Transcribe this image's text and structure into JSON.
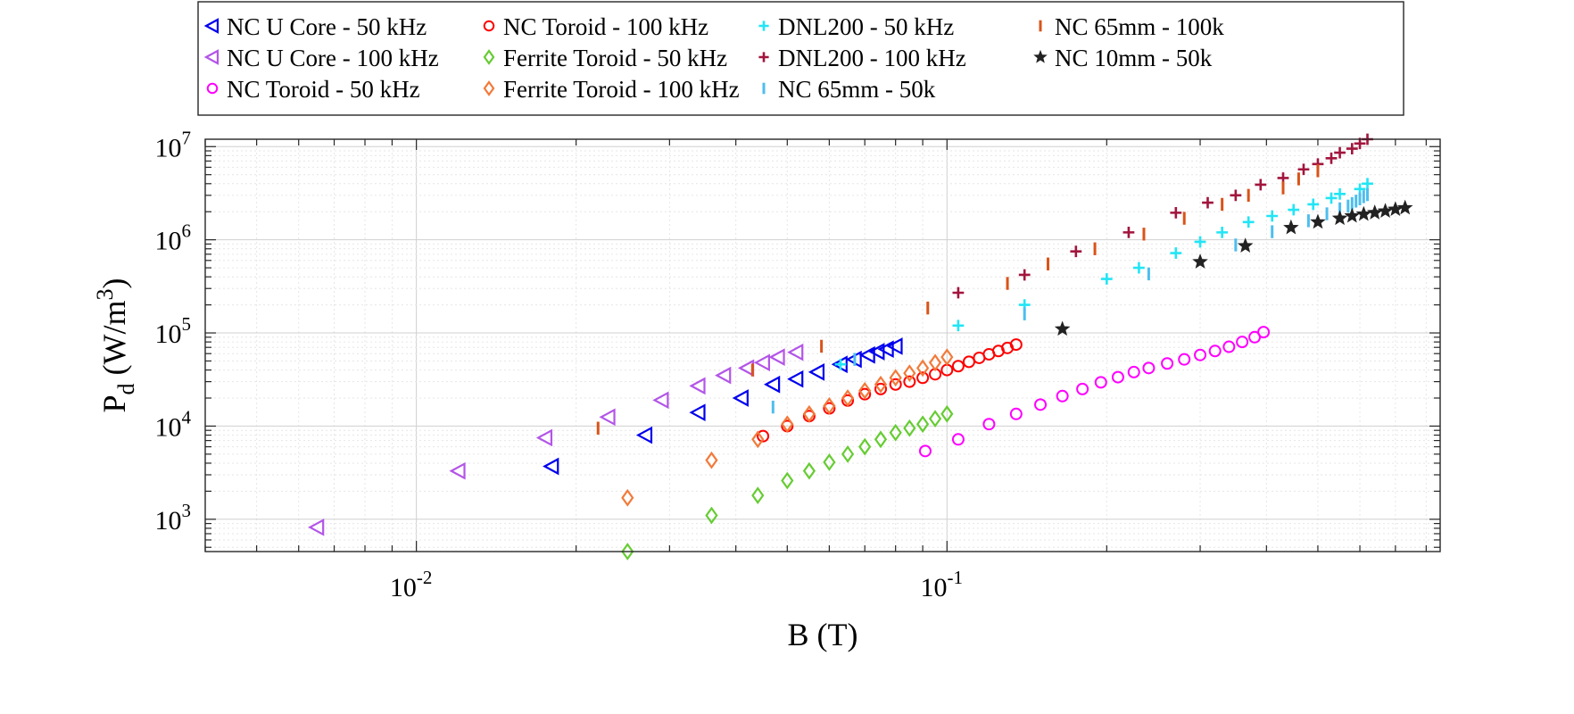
{
  "chart_data": {
    "type": "scatter",
    "title": "",
    "xlabel": "B (T)",
    "ylabel_main": "P",
    "ylabel_sub": "d",
    "ylabel_units": " (W/m",
    "ylabel_sup": "3",
    "ylabel_close": ")",
    "x_scale": "log",
    "y_scale": "log",
    "xlim": [
      0.004,
      0.85
    ],
    "ylim": [
      450,
      12000000
    ],
    "x_ticks": [
      {
        "value": 0.01,
        "base": "10",
        "exp": "-2"
      },
      {
        "value": 0.1,
        "base": "10",
        "exp": "-1"
      }
    ],
    "y_ticks": [
      {
        "value": 1000,
        "base": "10",
        "exp": "3"
      },
      {
        "value": 10000,
        "base": "10",
        "exp": "4"
      },
      {
        "value": 100000,
        "base": "10",
        "exp": "5"
      },
      {
        "value": 1000000,
        "base": "10",
        "exp": "6"
      },
      {
        "value": 10000000,
        "base": "10",
        "exp": "7"
      }
    ],
    "grid": true,
    "legend_position": "top",
    "series": [
      {
        "name": "NC U Core - 50 kHz",
        "marker": "tri-left",
        "color": "#0000ee",
        "x": [
          0.018,
          0.027,
          0.034,
          0.041,
          0.047,
          0.052,
          0.057,
          0.063,
          0.067,
          0.071,
          0.074,
          0.077,
          0.08
        ],
        "y": [
          3700,
          8000,
          14000,
          20000,
          28000,
          32000,
          38000,
          46000,
          52000,
          58000,
          63000,
          67000,
          72000
        ]
      },
      {
        "name": "NC U Core - 100 kHz",
        "marker": "tri-left",
        "color": "#b355e8",
        "x": [
          0.0065,
          0.012,
          0.0175,
          0.023,
          0.029,
          0.034,
          0.038,
          0.042,
          0.045,
          0.048,
          0.052
        ],
        "y": [
          820,
          3300,
          7500,
          12500,
          19000,
          27000,
          35000,
          42000,
          48000,
          55000,
          62000
        ]
      },
      {
        "name": "NC Toroid - 50 kHz",
        "marker": "circle",
        "color": "#ff00ff",
        "x": [
          0.091,
          0.105,
          0.12,
          0.135,
          0.15,
          0.165,
          0.18,
          0.195,
          0.21,
          0.225,
          0.24,
          0.26,
          0.28,
          0.3,
          0.32,
          0.34,
          0.36,
          0.38,
          0.395
        ],
        "y": [
          5400,
          7200,
          10500,
          13500,
          17000,
          21000,
          25000,
          29500,
          33500,
          38000,
          42000,
          47000,
          52000,
          58000,
          64000,
          71000,
          80000,
          90000,
          102000
        ]
      },
      {
        "name": "NC Toroid - 100 kHz",
        "marker": "circle",
        "color": "#ff0000",
        "x": [
          0.045,
          0.05,
          0.055,
          0.06,
          0.065,
          0.07,
          0.075,
          0.08,
          0.085,
          0.09,
          0.095,
          0.1,
          0.105,
          0.11,
          0.115,
          0.12,
          0.125,
          0.13,
          0.135
        ],
        "y": [
          7800,
          10000,
          12800,
          15500,
          18800,
          22000,
          25000,
          28000,
          30000,
          33000,
          36000,
          40000,
          44000,
          49000,
          54000,
          59000,
          64000,
          69000,
          75000
        ]
      },
      {
        "name": "Ferrite Toroid - 50 kHz",
        "marker": "diamond",
        "color": "#66cc33",
        "x": [
          0.025,
          0.036,
          0.044,
          0.05,
          0.055,
          0.06,
          0.065,
          0.07,
          0.075,
          0.08,
          0.085,
          0.09,
          0.095,
          0.1
        ],
        "y": [
          450,
          1100,
          1800,
          2600,
          3300,
          4100,
          5000,
          6000,
          7200,
          8500,
          9500,
          10500,
          12000,
          13500
        ]
      },
      {
        "name": "Ferrite Toroid - 100 kHz",
        "marker": "diamond",
        "color": "#f27a3a",
        "x": [
          0.025,
          0.036,
          0.044,
          0.05,
          0.055,
          0.06,
          0.065,
          0.07,
          0.075,
          0.08,
          0.085,
          0.09,
          0.095,
          0.1
        ],
        "y": [
          1700,
          4300,
          7200,
          10500,
          13500,
          16500,
          20000,
          24000,
          28000,
          33000,
          37000,
          42000,
          48000,
          55000
        ]
      },
      {
        "name": "DNL200 - 50 kHz",
        "marker": "plus",
        "color": "#22e5f5",
        "x": [
          0.063,
          0.105,
          0.14,
          0.2,
          0.23,
          0.27,
          0.3,
          0.33,
          0.37,
          0.41,
          0.45,
          0.49,
          0.53,
          0.55,
          0.6,
          0.62
        ],
        "y": [
          46000,
          120000,
          200000,
          380000,
          500000,
          720000,
          950000,
          1200000,
          1550000,
          1800000,
          2100000,
          2400000,
          2800000,
          3100000,
          3500000,
          4000000
        ]
      },
      {
        "name": "DNL200 - 100 kHz",
        "marker": "plus",
        "color": "#a2153d",
        "x": [
          0.105,
          0.14,
          0.175,
          0.22,
          0.27,
          0.31,
          0.35,
          0.39,
          0.43,
          0.47,
          0.5,
          0.53,
          0.55,
          0.58,
          0.6,
          0.62
        ],
        "y": [
          270000,
          420000,
          750000,
          1200000,
          1950000,
          2500000,
          3000000,
          3900000,
          4600000,
          5700000,
          6500000,
          7500000,
          8600000,
          9500000,
          10800000,
          12000000
        ]
      },
      {
        "name": "NC 65mm - 50k",
        "marker": "vbar",
        "color": "#4dbeee",
        "x": [
          0.047,
          0.067,
          0.14,
          0.24,
          0.35,
          0.41,
          0.48,
          0.52,
          0.55,
          0.57,
          0.58,
          0.59,
          0.6,
          0.61,
          0.62
        ],
        "y": [
          16000,
          52000,
          160000,
          430000,
          880000,
          1220000,
          1600000,
          1900000,
          2150000,
          2300000,
          2450000,
          2600000,
          2750000,
          2900000,
          3050000
        ]
      },
      {
        "name": "NC 65mm - 100k",
        "marker": "vbar",
        "color": "#d95319",
        "x": [
          0.022,
          0.043,
          0.058,
          0.092,
          0.13,
          0.155,
          0.19,
          0.235,
          0.28,
          0.33,
          0.37,
          0.43,
          0.46,
          0.5
        ],
        "y": [
          9500,
          40000,
          72000,
          185000,
          340000,
          550000,
          800000,
          1150000,
          1700000,
          2400000,
          3000000,
          3600000,
          4500000,
          5500000
        ]
      },
      {
        "name": "NC 10mm - 50k",
        "marker": "star",
        "color": "#222222",
        "x": [
          0.165,
          0.3,
          0.365,
          0.445,
          0.5,
          0.55,
          0.58,
          0.61,
          0.64,
          0.67,
          0.7,
          0.73
        ],
        "y": [
          110000,
          580000,
          860000,
          1350000,
          1550000,
          1700000,
          1800000,
          1880000,
          1950000,
          2030000,
          2120000,
          2200000
        ]
      }
    ]
  }
}
